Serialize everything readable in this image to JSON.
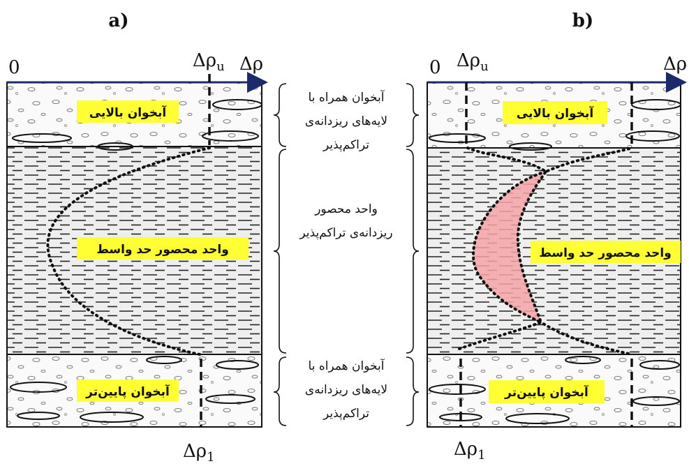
{
  "panel_a": {
    "label": "a)",
    "origin": "0",
    "delta_rho_u": {
      "symbol": "Δρ",
      "sub": "u"
    },
    "axis": "Δρ",
    "upper_aquifer": "آبخوان بالایی",
    "middle_unit": "واحد محصور حد واسط",
    "lower_aquifer": "آبخوان پایین‌تر",
    "delta_rho_1": {
      "symbol": "Δρ",
      "sub": "1"
    }
  },
  "panel_b": {
    "label": "b)",
    "origin": "0",
    "delta_rho_u": {
      "symbol": "Δρ",
      "sub": "u"
    },
    "axis": "Δρ",
    "upper_aquifer": "آبخوان بالایی",
    "middle_unit": "واحد محصور  حد واسط",
    "lower_aquifer": "آبخوان پایین‌تر",
    "delta_rho_1": {
      "symbol": "Δρ",
      "sub": "1"
    }
  },
  "legend": {
    "upper": [
      "آبخوان همراه با",
      "لایه‌های ریزدانه‌ی",
      "تراکم‌پذیر"
    ],
    "middle": [
      "واحد محصور",
      "ریزدانه‌ی تراکم‌پذیر"
    ],
    "lower": [
      "آبخوان همراه با",
      "لایه‌های ریزدانه‌ی",
      "تراکم‌پذیر"
    ]
  }
}
